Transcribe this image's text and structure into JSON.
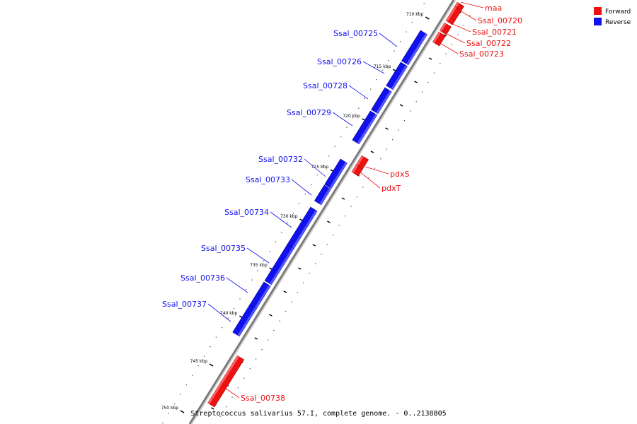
{
  "genome": {
    "caption": "Streptococcus salivarius 57.I, complete genome. - 0..2138805"
  },
  "legend": [
    {
      "label": "Forward",
      "color": "#ee1111"
    },
    {
      "label": "Reverse",
      "color": "#1111ee"
    }
  ],
  "ticks": [
    "710 kbp",
    "715 kbp",
    "720 kbp",
    "725 kbp",
    "730 kbp",
    "735 kbp",
    "740 kbp",
    "745 kbp",
    "750 kbp"
  ],
  "genes": [
    {
      "name": "maa",
      "strand": "Forward"
    },
    {
      "name": "Ssal_00720",
      "strand": "Forward"
    },
    {
      "name": "Ssal_00721",
      "strand": "Forward"
    },
    {
      "name": "Ssal_00722",
      "strand": "Forward"
    },
    {
      "name": "Ssal_00723",
      "strand": "Forward"
    },
    {
      "name": "Ssal_00725",
      "strand": "Reverse"
    },
    {
      "name": "Ssal_00726",
      "strand": "Reverse"
    },
    {
      "name": "Ssal_00728",
      "strand": "Reverse"
    },
    {
      "name": "Ssal_00729",
      "strand": "Reverse"
    },
    {
      "name": "pdxS",
      "strand": "Forward"
    },
    {
      "name": "pdxT",
      "strand": "Forward"
    },
    {
      "name": "Ssal_00732",
      "strand": "Reverse"
    },
    {
      "name": "Ssal_00733",
      "strand": "Reverse"
    },
    {
      "name": "Ssal_00734",
      "strand": "Reverse"
    },
    {
      "name": "Ssal_00735",
      "strand": "Reverse"
    },
    {
      "name": "Ssal_00736",
      "strand": "Reverse"
    },
    {
      "name": "Ssal_00737",
      "strand": "Reverse"
    },
    {
      "name": "Ssal_00738",
      "strand": "Forward"
    }
  ],
  "colors": {
    "forward": "#ee1111",
    "reverse": "#1111ee",
    "backbone": "#808080"
  }
}
